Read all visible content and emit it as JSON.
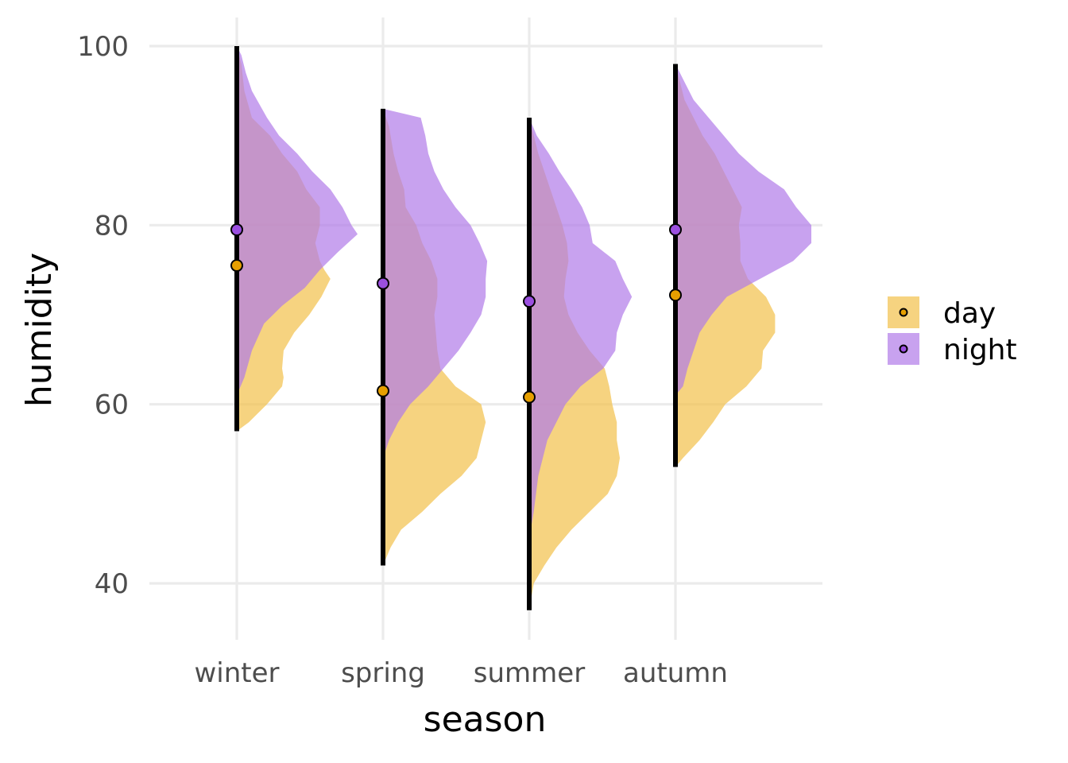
{
  "chart_data": {
    "type": "violin",
    "xlabel": "season",
    "ylabel": "humidity",
    "categories": [
      "winter",
      "spring",
      "summer",
      "autumn"
    ],
    "ylim": [
      35,
      103
    ],
    "yticks": [
      40,
      60,
      80,
      100
    ],
    "grid": true,
    "legend": {
      "position": "right",
      "entries": [
        {
          "label": "day",
          "color": "#E69F00",
          "fill": "#F2C04A"
        },
        {
          "label": "night",
          "color": "#9B4FE0",
          "fill": "#B07AE8"
        }
      ]
    },
    "range_lines": [
      {
        "category": "winter",
        "min": 57,
        "max": 100
      },
      {
        "category": "spring",
        "min": 42,
        "max": 93
      },
      {
        "category": "summer",
        "min": 37,
        "max": 92
      },
      {
        "category": "autumn",
        "min": 53,
        "max": 98
      }
    ],
    "series": [
      {
        "name": "day",
        "color": "#E69F00",
        "fill": "#F2C04A",
        "medians": [
          75.5,
          61.5,
          60.8,
          72.2
        ],
        "densities": [
          [
            [
              57,
              0.0
            ],
            [
              58,
              0.08
            ],
            [
              60,
              0.2
            ],
            [
              62,
              0.3
            ],
            [
              63,
              0.31
            ],
            [
              64,
              0.3
            ],
            [
              66,
              0.31
            ],
            [
              68,
              0.38
            ],
            [
              70,
              0.48
            ],
            [
              72,
              0.56
            ],
            [
              74,
              0.62
            ],
            [
              75,
              0.58
            ],
            [
              76,
              0.55
            ],
            [
              78,
              0.52
            ],
            [
              80,
              0.55
            ],
            [
              82,
              0.55
            ],
            [
              84,
              0.46
            ],
            [
              86,
              0.4
            ],
            [
              88,
              0.3
            ],
            [
              90,
              0.22
            ],
            [
              92,
              0.1
            ],
            [
              95,
              0.05
            ],
            [
              98,
              0.03
            ],
            [
              100,
              0.0
            ]
          ],
          [
            [
              42,
              0.0
            ],
            [
              44,
              0.05
            ],
            [
              46,
              0.12
            ],
            [
              48,
              0.26
            ],
            [
              50,
              0.38
            ],
            [
              52,
              0.52
            ],
            [
              54,
              0.62
            ],
            [
              56,
              0.65
            ],
            [
              58,
              0.68
            ],
            [
              60,
              0.65
            ],
            [
              62,
              0.48
            ],
            [
              64,
              0.38
            ],
            [
              66,
              0.36
            ],
            [
              68,
              0.35
            ],
            [
              70,
              0.34
            ],
            [
              72,
              0.36
            ],
            [
              74,
              0.36
            ],
            [
              76,
              0.32
            ],
            [
              78,
              0.26
            ],
            [
              80,
              0.22
            ],
            [
              82,
              0.15
            ],
            [
              84,
              0.14
            ],
            [
              86,
              0.1
            ],
            [
              88,
              0.07
            ],
            [
              91,
              0.04
            ],
            [
              93,
              0.0
            ]
          ],
          [
            [
              37,
              0.0
            ],
            [
              40,
              0.03
            ],
            [
              42,
              0.1
            ],
            [
              44,
              0.18
            ],
            [
              46,
              0.28
            ],
            [
              48,
              0.4
            ],
            [
              50,
              0.52
            ],
            [
              52,
              0.58
            ],
            [
              54,
              0.6
            ],
            [
              56,
              0.58
            ],
            [
              58,
              0.58
            ],
            [
              60,
              0.55
            ],
            [
              62,
              0.53
            ],
            [
              64,
              0.5
            ],
            [
              66,
              0.4
            ],
            [
              68,
              0.32
            ],
            [
              70,
              0.26
            ],
            [
              72,
              0.23
            ],
            [
              74,
              0.24
            ],
            [
              76,
              0.26
            ],
            [
              78,
              0.25
            ],
            [
              80,
              0.22
            ],
            [
              82,
              0.18
            ],
            [
              84,
              0.14
            ],
            [
              86,
              0.1
            ],
            [
              88,
              0.06
            ],
            [
              90,
              0.03
            ],
            [
              92,
              0.0
            ]
          ],
          [
            [
              53,
              0.0
            ],
            [
              54,
              0.05
            ],
            [
              56,
              0.16
            ],
            [
              58,
              0.25
            ],
            [
              60,
              0.33
            ],
            [
              62,
              0.47
            ],
            [
              64,
              0.57
            ],
            [
              66,
              0.58
            ],
            [
              68,
              0.66
            ],
            [
              70,
              0.66
            ],
            [
              72,
              0.6
            ],
            [
              74,
              0.48
            ],
            [
              76,
              0.43
            ],
            [
              78,
              0.43
            ],
            [
              80,
              0.42
            ],
            [
              82,
              0.44
            ],
            [
              84,
              0.38
            ],
            [
              86,
              0.32
            ],
            [
              88,
              0.26
            ],
            [
              90,
              0.18
            ],
            [
              92,
              0.12
            ],
            [
              94,
              0.06
            ],
            [
              96,
              0.03
            ],
            [
              98,
              0.0
            ]
          ]
        ]
      },
      {
        "name": "night",
        "color": "#9B4FE0",
        "fill": "#B07AE8",
        "medians": [
          79.5,
          73.5,
          71.5,
          79.5
        ],
        "densities": [
          [
            [
              61,
              0.0
            ],
            [
              63,
              0.05
            ],
            [
              66,
              0.1
            ],
            [
              69,
              0.18
            ],
            [
              71,
              0.3
            ],
            [
              73,
              0.45
            ],
            [
              75,
              0.55
            ],
            [
              77,
              0.67
            ],
            [
              79,
              0.8
            ],
            [
              80,
              0.76
            ],
            [
              82,
              0.7
            ],
            [
              84,
              0.62
            ],
            [
              86,
              0.5
            ],
            [
              88,
              0.4
            ],
            [
              90,
              0.28
            ],
            [
              92,
              0.2
            ],
            [
              95,
              0.1
            ],
            [
              97,
              0.06
            ],
            [
              99,
              0.03
            ],
            [
              100,
              0.0
            ]
          ],
          [
            [
              54,
              0.0
            ],
            [
              56,
              0.04
            ],
            [
              58,
              0.1
            ],
            [
              60,
              0.18
            ],
            [
              62,
              0.3
            ],
            [
              64,
              0.4
            ],
            [
              66,
              0.5
            ],
            [
              68,
              0.58
            ],
            [
              70,
              0.65
            ],
            [
              72,
              0.68
            ],
            [
              74,
              0.68
            ],
            [
              76,
              0.69
            ],
            [
              78,
              0.64
            ],
            [
              80,
              0.58
            ],
            [
              82,
              0.48
            ],
            [
              84,
              0.4
            ],
            [
              86,
              0.34
            ],
            [
              88,
              0.3
            ],
            [
              90,
              0.28
            ],
            [
              92,
              0.25
            ],
            [
              93,
              0.0
            ]
          ],
          [
            [
              45,
              0.0
            ],
            [
              48,
              0.03
            ],
            [
              52,
              0.06
            ],
            [
              56,
              0.12
            ],
            [
              60,
              0.24
            ],
            [
              62,
              0.34
            ],
            [
              64,
              0.49
            ],
            [
              66,
              0.57
            ],
            [
              68,
              0.58
            ],
            [
              70,
              0.62
            ],
            [
              72,
              0.68
            ],
            [
              74,
              0.62
            ],
            [
              76,
              0.57
            ],
            [
              78,
              0.42
            ],
            [
              80,
              0.4
            ],
            [
              82,
              0.35
            ],
            [
              84,
              0.28
            ],
            [
              86,
              0.2
            ],
            [
              88,
              0.13
            ],
            [
              90,
              0.05
            ],
            [
              92,
              0.0
            ]
          ],
          [
            [
              61,
              0.0
            ],
            [
              62,
              0.05
            ],
            [
              64,
              0.08
            ],
            [
              66,
              0.12
            ],
            [
              68,
              0.16
            ],
            [
              70,
              0.24
            ],
            [
              72,
              0.34
            ],
            [
              74,
              0.56
            ],
            [
              76,
              0.78
            ],
            [
              78,
              0.9
            ],
            [
              80,
              0.9
            ],
            [
              82,
              0.8
            ],
            [
              84,
              0.72
            ],
            [
              86,
              0.55
            ],
            [
              88,
              0.42
            ],
            [
              90,
              0.32
            ],
            [
              92,
              0.22
            ],
            [
              94,
              0.12
            ],
            [
              96,
              0.06
            ],
            [
              98,
              0.0
            ]
          ]
        ]
      }
    ]
  }
}
